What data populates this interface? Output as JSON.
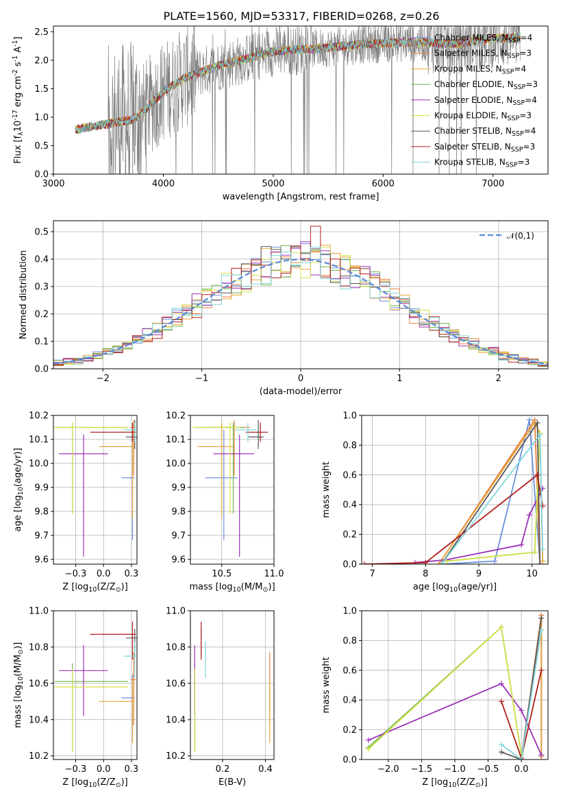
{
  "figure_title": "PLATE=1560, MJD=53317, FIBERID=0268, z=0.26",
  "colors": {
    "Chabrier MILES": "#6a8fdc",
    "Salpeter MILES": "#e8823c",
    "Kroupa MILES": "#e8a43a",
    "Chabrier ELODIE": "#6bb04a",
    "Salpeter ELODIE": "#9b30b8",
    "Kroupa ELODIE": "#d6e24a",
    "Chabrier STELIB": "#555555",
    "Salpeter STELIB": "#b01c1c",
    "Kroupa STELIB": "#7fd6dc",
    "data": "#808080"
  },
  "chart_data": [
    {
      "id": "spectrum",
      "type": "line",
      "title": "PLATE=1560, MJD=53317, FIBERID=0268, z=0.26",
      "xlabel": "wavelength [Angstrom, rest frame]",
      "ylabel": "Flux [f$_\\lambda$10$^{-17}$ erg cm$^{-2}$ s$^{-1}$ A$^{-1}$]",
      "xlim": [
        3000,
        7500
      ],
      "ylim": [
        0,
        2.6
      ],
      "xticks": [
        3000,
        4000,
        5000,
        6000,
        7000
      ],
      "yticks": [
        0.0,
        0.5,
        1.0,
        1.5,
        2.0,
        2.5
      ],
      "grid": false,
      "legend_position": "upper right",
      "series": [
        {
          "name": "Chabrier MILES, N$_{SSP}$=4"
        },
        {
          "name": "Salpeter MILES, N$_{SSP}$=3"
        },
        {
          "name": "Kroupa MILES, N$_{SSP}$=4"
        },
        {
          "name": "Chabrier ELODIE, N$_{SSP}$=3"
        },
        {
          "name": "Salpeter ELODIE, N$_{SSP}$=4"
        },
        {
          "name": "Kroupa ELODIE, N$_{SSP}$=3"
        },
        {
          "name": "Chabrier STELIB, N$_{SSP}$=4"
        },
        {
          "name": "Salpeter STELIB, N$_{SSP}$=3"
        },
        {
          "name": "Kroupa STELIB, N$_{SSP}$=3"
        }
      ],
      "continuum": {
        "x": [
          3200,
          3300,
          3400,
          3500,
          3600,
          3700,
          3800,
          3900,
          4000,
          4200,
          4500,
          4800,
          5000,
          5200,
          5500,
          5800,
          6000,
          6300,
          6600,
          7000,
          7200
        ],
        "y": [
          0.78,
          0.82,
          0.85,
          0.88,
          0.92,
          0.95,
          1.05,
          1.25,
          1.45,
          1.7,
          1.9,
          2.05,
          2.15,
          2.18,
          2.22,
          2.28,
          2.3,
          2.32,
          2.28,
          2.38,
          2.4
        ]
      }
    },
    {
      "id": "residuals",
      "type": "step",
      "xlabel": "(data-model)/error",
      "ylabel": "Normed distribution",
      "xlim": [
        -2.5,
        2.5
      ],
      "ylim": [
        0,
        0.54
      ],
      "xticks": [
        -2,
        -1,
        0,
        1,
        2
      ],
      "yticks": [
        0.0,
        0.1,
        0.2,
        0.3,
        0.4,
        0.5
      ],
      "grid": true,
      "legend_position": "upper right",
      "reference_curve": {
        "name": "$\\mathcal{N}(0,1)$",
        "mean": 0,
        "sigma": 1
      },
      "bin_width": 0.1,
      "peak_value": 0.52
    },
    {
      "id": "age_vs_Z",
      "type": "errorbar",
      "xlabel": "Z [log$_{10}$(Z/Z$_\\odot$)]",
      "ylabel": "age  [log$_{10}$(age/yr)]",
      "xlim": [
        -0.45,
        0.3
      ],
      "ylim": [
        9.58,
        10.2
      ],
      "xticks": [
        -0.25,
        0.0,
        0.25
      ],
      "yticks": [
        9.6,
        9.7,
        9.8,
        9.9,
        10.0,
        10.1,
        10.2
      ],
      "grid": true,
      "points": [
        {
          "model": "Chabrier MILES",
          "x": 0.26,
          "xerr": [
            0.1,
            0.02
          ],
          "y": 9.94,
          "yerr": [
            0.26,
            0.2
          ]
        },
        {
          "model": "Salpeter MILES",
          "x": 0.27,
          "xerr": [
            0.03,
            0.02
          ],
          "y": 10.15,
          "yerr": [
            0.2,
            0.03
          ]
        },
        {
          "model": "Kroupa MILES",
          "x": 0.26,
          "xerr": [
            0.3,
            0.02
          ],
          "y": 10.07,
          "yerr": [
            0.3,
            0.1
          ]
        },
        {
          "model": "Chabrier ELODIE",
          "x": -0.28,
          "xerr": [
            0.16,
            0.5
          ],
          "y": 10.15,
          "yerr": [
            0.36,
            0.02
          ]
        },
        {
          "model": "Salpeter ELODIE",
          "x": -0.18,
          "xerr": [
            0.22,
            0.22
          ],
          "y": 10.04,
          "yerr": [
            0.43,
            0.08
          ]
        },
        {
          "model": "Kroupa ELODIE",
          "x": -0.28,
          "xerr": [
            0.16,
            0.5
          ],
          "y": 10.15,
          "yerr": [
            0.36,
            0.02
          ]
        },
        {
          "model": "Chabrier STELIB",
          "x": 0.28,
          "xerr": [
            0.08,
            0.02
          ],
          "y": 10.11,
          "yerr": [
            0.05,
            0.07
          ]
        },
        {
          "model": "Salpeter STELIB",
          "x": 0.26,
          "xerr": [
            0.38,
            0.03
          ],
          "y": 10.13,
          "yerr": [
            0.04,
            0.04
          ]
        },
        {
          "model": "Kroupa STELIB",
          "x": 0.28,
          "xerr": [
            0.1,
            0.02
          ],
          "y": 10.14,
          "yerr": [
            0.05,
            0.03
          ]
        }
      ]
    },
    {
      "id": "age_vs_mass",
      "type": "errorbar",
      "xlabel": "mass [log$_{10}$(M/M$_\\odot$)]",
      "ylabel": "",
      "xlim": [
        10.2,
        11.0
      ],
      "ylim": [
        9.58,
        10.2
      ],
      "xticks": [
        10.5,
        11.0
      ],
      "yticks": [
        9.6,
        9.7,
        9.8,
        9.9,
        10.0,
        10.1,
        10.2
      ],
      "grid": true,
      "points": [
        {
          "model": "Chabrier MILES",
          "x": 10.52,
          "xerr": [
            0.18,
            0.13
          ],
          "y": 9.94,
          "yerr": [
            0.26,
            0.2
          ]
        },
        {
          "model": "Salpeter MILES",
          "x": 10.62,
          "xerr": [
            0.25,
            0.15
          ],
          "y": 10.15,
          "yerr": [
            0.2,
            0.03
          ]
        },
        {
          "model": "Kroupa MILES",
          "x": 10.5,
          "xerr": [
            0.23,
            0.12
          ],
          "y": 10.07,
          "yerr": [
            0.3,
            0.1
          ]
        },
        {
          "model": "Chabrier ELODIE",
          "x": 10.61,
          "xerr": [
            0.38,
            0.1
          ],
          "y": 10.15,
          "yerr": [
            0.36,
            0.02
          ]
        },
        {
          "model": "Salpeter ELODIE",
          "x": 10.67,
          "xerr": [
            0.25,
            0.14
          ],
          "y": 10.04,
          "yerr": [
            0.43,
            0.08
          ]
        },
        {
          "model": "Kroupa ELODIE",
          "x": 10.58,
          "xerr": [
            0.36,
            0.1
          ],
          "y": 10.15,
          "yerr": [
            0.36,
            0.02
          ]
        },
        {
          "model": "Chabrier STELIB",
          "x": 10.85,
          "xerr": [
            0.1,
            0.05
          ],
          "y": 10.11,
          "yerr": [
            0.05,
            0.07
          ]
        },
        {
          "model": "Salpeter STELIB",
          "x": 10.87,
          "xerr": [
            0.14,
            0.07
          ],
          "y": 10.13,
          "yerr": [
            0.04,
            0.04
          ]
        },
        {
          "model": "Kroupa STELIB",
          "x": 10.75,
          "xerr": [
            0.12,
            0.08
          ],
          "y": 10.14,
          "yerr": [
            0.05,
            0.03
          ]
        }
      ]
    },
    {
      "id": "weight_vs_age",
      "type": "line",
      "xlabel": "age  [log$_{10}$(age/yr)]",
      "ylabel": "mass weight",
      "xlim": [
        6.8,
        10.3
      ],
      "ylim": [
        0,
        1.0
      ],
      "xticks": [
        7,
        8,
        9,
        10
      ],
      "yticks": [
        0.0,
        0.2,
        0.4,
        0.6,
        0.8,
        1.0
      ],
      "grid": true,
      "series": [
        {
          "model": "Chabrier MILES",
          "x": [
            8.3,
            9.3,
            9.95,
            10.15
          ],
          "y": [
            0.0,
            0.02,
            0.97,
            0.0
          ]
        },
        {
          "model": "Salpeter MILES",
          "x": [
            8.25,
            10.05,
            10.15
          ],
          "y": [
            0.0,
            0.97,
            0.0
          ]
        },
        {
          "model": "Kroupa MILES",
          "x": [
            8.25,
            10.05,
            10.15,
            10.2
          ],
          "y": [
            0.0,
            0.95,
            0.88,
            0.02
          ]
        },
        {
          "model": "Chabrier ELODIE",
          "x": [
            8.4,
            10.05,
            10.15
          ],
          "y": [
            0.02,
            0.08,
            0.88
          ]
        },
        {
          "model": "Salpeter ELODIE",
          "x": [
            7.8,
            8.4,
            9.8,
            9.95,
            10.2
          ],
          "y": [
            0.01,
            0.03,
            0.13,
            0.33,
            0.51
          ]
        },
        {
          "model": "Kroupa ELODIE",
          "x": [
            8.4,
            10.05,
            10.15
          ],
          "y": [
            0.02,
            0.08,
            0.88
          ]
        },
        {
          "model": "Chabrier STELIB",
          "x": [
            8.3,
            10.1,
            10.15
          ],
          "y": [
            0.0,
            0.95,
            0.0
          ]
        },
        {
          "model": "Salpeter STELIB",
          "x": [
            6.85,
            8.0,
            10.1,
            10.2
          ],
          "y": [
            0.0,
            0.01,
            0.6,
            0.39
          ]
        },
        {
          "model": "Kroupa STELIB",
          "x": [
            8.3,
            10.15,
            10.2
          ],
          "y": [
            0.0,
            0.87,
            0.1
          ]
        }
      ]
    },
    {
      "id": "mass_vs_Z",
      "type": "errorbar",
      "xlabel": "Z [log$_{10}$(Z/Z$_\\odot$)]",
      "ylabel": "mass [log$_{10}$(M/M$_\\odot$)]",
      "xlim": [
        -0.45,
        0.3
      ],
      "ylim": [
        10.18,
        11.0
      ],
      "xticks": [
        -0.25,
        0.0,
        0.25
      ],
      "yticks": [
        10.2,
        10.4,
        10.6,
        10.8,
        11.0
      ],
      "grid": true,
      "points": [
        {
          "model": "Chabrier MILES",
          "x": 0.26,
          "xerr": [
            0.1,
            0.02
          ],
          "y": 10.52,
          "yerr": [
            0.18,
            0.13
          ]
        },
        {
          "model": "Salpeter MILES",
          "x": 0.27,
          "xerr": [
            0.03,
            0.02
          ],
          "y": 10.62,
          "yerr": [
            0.25,
            0.15
          ]
        },
        {
          "model": "Kroupa MILES",
          "x": 0.26,
          "xerr": [
            0.3,
            0.02
          ],
          "y": 10.5,
          "yerr": [
            0.23,
            0.12
          ]
        },
        {
          "model": "Chabrier ELODIE",
          "x": -0.28,
          "xerr": [
            0.16,
            0.5
          ],
          "y": 10.61,
          "yerr": [
            0.38,
            0.1
          ]
        },
        {
          "model": "Salpeter ELODIE",
          "x": -0.18,
          "xerr": [
            0.22,
            0.22
          ],
          "y": 10.67,
          "yerr": [
            0.25,
            0.14
          ]
        },
        {
          "model": "Kroupa ELODIE",
          "x": -0.28,
          "xerr": [
            0.16,
            0.5
          ],
          "y": 10.58,
          "yerr": [
            0.36,
            0.1
          ]
        },
        {
          "model": "Chabrier STELIB",
          "x": 0.28,
          "xerr": [
            0.08,
            0.02
          ],
          "y": 10.85,
          "yerr": [
            0.1,
            0.05
          ]
        },
        {
          "model": "Salpeter STELIB",
          "x": 0.26,
          "xerr": [
            0.38,
            0.03
          ],
          "y": 10.87,
          "yerr": [
            0.14,
            0.07
          ]
        },
        {
          "model": "Kroupa STELIB",
          "x": 0.28,
          "xerr": [
            0.1,
            0.02
          ],
          "y": 10.75,
          "yerr": [
            0.12,
            0.08
          ]
        }
      ]
    },
    {
      "id": "mass_vs_ebv",
      "type": "errorbar",
      "xlabel": "E(B-V)",
      "ylabel": "",
      "xlim": [
        0.05,
        0.44
      ],
      "ylim": [
        10.18,
        11.0
      ],
      "xticks": [
        0.2,
        0.4
      ],
      "yticks": [
        10.2,
        10.4,
        10.6,
        10.8,
        11.0
      ],
      "grid": true,
      "points": [
        {
          "model": "Chabrier MILES",
          "x": 0.07,
          "xerr": [
            0.0,
            0.0
          ],
          "y": 10.52,
          "yerr": [
            0.18,
            0.13
          ]
        },
        {
          "model": "Salpeter MILES",
          "x": 0.42,
          "xerr": [
            0.0,
            0.0
          ],
          "y": 10.62,
          "yerr": [
            0.25,
            0.15
          ]
        },
        {
          "model": "Kroupa MILES",
          "x": 0.42,
          "xerr": [
            0.0,
            0.0
          ],
          "y": 10.5,
          "yerr": [
            0.23,
            0.12
          ]
        },
        {
          "model": "Chabrier ELODIE",
          "x": 0.07,
          "xerr": [
            0.0,
            0.0
          ],
          "y": 10.61,
          "yerr": [
            0.38,
            0.1
          ]
        },
        {
          "model": "Salpeter ELODIE",
          "x": 0.07,
          "xerr": [
            0.0,
            0.0
          ],
          "y": 10.67,
          "yerr": [
            0.25,
            0.14
          ]
        },
        {
          "model": "Kroupa ELODIE",
          "x": 0.07,
          "xerr": [
            0.0,
            0.0
          ],
          "y": 10.58,
          "yerr": [
            0.36,
            0.1
          ]
        },
        {
          "model": "Chabrier STELIB",
          "x": 0.1,
          "xerr": [
            0.0,
            0.0
          ],
          "y": 10.85,
          "yerr": [
            0.1,
            0.05
          ]
        },
        {
          "model": "Salpeter STELIB",
          "x": 0.1,
          "xerr": [
            0.0,
            0.0
          ],
          "y": 10.87,
          "yerr": [
            0.14,
            0.07
          ]
        },
        {
          "model": "Kroupa STELIB",
          "x": 0.12,
          "xerr": [
            0.0,
            0.0
          ],
          "y": 10.75,
          "yerr": [
            0.12,
            0.08
          ]
        }
      ]
    },
    {
      "id": "weight_vs_Z",
      "type": "line",
      "xlabel": "Z [log$_{10}$(Z/Z$_\\odot$)]",
      "ylabel": "mass weight",
      "xlim": [
        -2.4,
        0.4
      ],
      "ylim": [
        0,
        1.0
      ],
      "xticks": [
        -2.0,
        -1.5,
        -1.0,
        -0.5,
        0.0
      ],
      "yticks": [
        0.0,
        0.2,
        0.4,
        0.6,
        0.8,
        1.0
      ],
      "grid": true,
      "series": [
        {
          "model": "Chabrier MILES",
          "x": [
            0.0,
            0.3,
            0.3
          ],
          "y": [
            0.0,
            0.97,
            0.03
          ]
        },
        {
          "model": "Salpeter MILES",
          "x": [
            0.0,
            0.3,
            0.3
          ],
          "y": [
            0.0,
            0.97,
            0.02
          ]
        },
        {
          "model": "Kroupa MILES",
          "x": [
            0.0,
            0.3,
            0.3
          ],
          "y": [
            0.0,
            0.95,
            0.02
          ]
        },
        {
          "model": "Chabrier ELODIE",
          "x": [
            -2.3,
            -0.3,
            0.0
          ],
          "y": [
            0.08,
            0.89,
            0.03
          ]
        },
        {
          "model": "Salpeter ELODIE",
          "x": [
            -2.3,
            -0.3,
            0.0,
            0.3
          ],
          "y": [
            0.13,
            0.51,
            0.33,
            0.03
          ]
        },
        {
          "model": "Kroupa ELODIE",
          "x": [
            -2.3,
            -0.3,
            0.0
          ],
          "y": [
            0.07,
            0.89,
            0.03
          ]
        },
        {
          "model": "Chabrier STELIB",
          "x": [
            -0.3,
            0.0,
            0.3
          ],
          "y": [
            0.05,
            0.0,
            0.95
          ]
        },
        {
          "model": "Salpeter STELIB",
          "x": [
            -0.3,
            0.0,
            0.3
          ],
          "y": [
            0.39,
            0.01,
            0.6
          ]
        },
        {
          "model": "Kroupa STELIB",
          "x": [
            -0.3,
            0.0,
            0.3
          ],
          "y": [
            0.1,
            0.0,
            0.87
          ]
        }
      ]
    }
  ]
}
